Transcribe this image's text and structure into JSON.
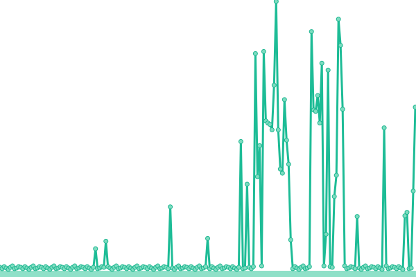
{
  "chart_data": {
    "type": "line",
    "markers": true,
    "grid": false,
    "axes_visible": false,
    "legend": "none",
    "ylim": [
      0,
      395
    ],
    "colors": {
      "line": "#1dbc96",
      "marker_fill": "#7ddcc0",
      "marker_stroke": "#1db690",
      "band": "#8fe0c8"
    },
    "values": [
      5,
      3,
      6,
      4,
      2,
      5,
      7,
      3,
      4,
      6,
      5,
      3,
      6,
      4,
      2,
      5,
      7,
      3,
      4,
      6,
      5,
      3,
      6,
      4,
      2,
      5,
      7,
      3,
      4,
      6,
      5,
      3,
      6,
      4,
      2,
      5,
      7,
      3,
      4,
      6,
      5,
      3,
      6,
      4,
      2,
      5,
      32,
      3,
      4,
      6,
      5,
      43,
      6,
      4,
      2,
      5,
      7,
      3,
      4,
      6,
      5,
      3,
      6,
      4,
      2,
      5,
      7,
      3,
      4,
      6,
      5,
      3,
      6,
      4,
      2,
      5,
      7,
      3,
      4,
      6,
      5,
      3,
      93,
      4,
      2,
      5,
      7,
      3,
      4,
      6,
      5,
      3,
      6,
      4,
      2,
      5,
      7,
      3,
      4,
      6,
      47,
      3,
      6,
      4,
      2,
      5,
      7,
      3,
      4,
      6,
      5,
      3,
      6,
      4,
      2,
      5,
      188,
      3,
      4,
      126,
      5,
      3,
      6,
      316,
      137,
      182,
      7,
      319,
      218,
      215,
      213,
      205,
      270,
      392,
      205,
      148,
      142,
      249,
      190,
      155,
      45,
      3,
      6,
      4,
      2,
      5,
      7,
      3,
      4,
      6,
      348,
      234,
      232,
      255,
      215,
      302,
      7,
      53,
      292,
      6,
      5,
      108,
      139,
      366,
      328,
      235,
      7,
      3,
      4,
      6,
      5,
      3,
      79,
      4,
      2,
      5,
      7,
      3,
      4,
      6,
      5,
      3,
      6,
      4,
      2,
      208,
      7,
      3,
      4,
      6,
      5,
      3,
      6,
      4,
      2,
      80,
      85,
      3,
      4,
      116,
      238
    ]
  }
}
